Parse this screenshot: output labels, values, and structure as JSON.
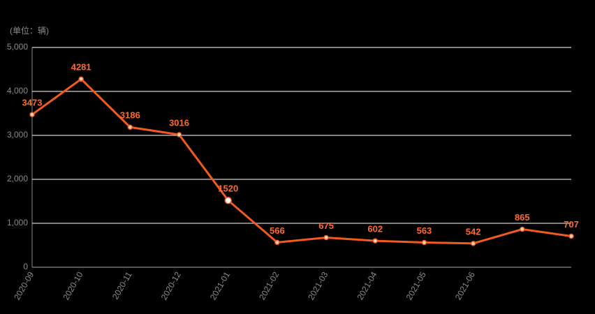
{
  "chart_data": {
    "type": "line",
    "unit_label": "(单位：辆)",
    "categories": [
      "2020-09",
      "2020-10",
      "2020-11",
      "2020-12",
      "2021-01",
      "2021-02",
      "2021-03",
      "2021-04",
      "2021-05",
      "2021-06",
      null,
      null
    ],
    "values": [
      3473,
      4281,
      3186,
      3016,
      1520,
      566,
      675,
      602,
      563,
      542,
      865,
      707
    ],
    "color": "#f25a1e",
    "ylim": [
      0,
      5000
    ],
    "yticks": [
      0,
      {
        "value": 1000,
        "label": "1,000"
      },
      {
        "value": 2000,
        "label": "2,000"
      },
      {
        "value": 3000,
        "label": "3,000"
      },
      {
        "value": 4000,
        "label": "4,000"
      },
      {
        "value": 5000,
        "label": "5,000"
      }
    ],
    "grid": true
  }
}
